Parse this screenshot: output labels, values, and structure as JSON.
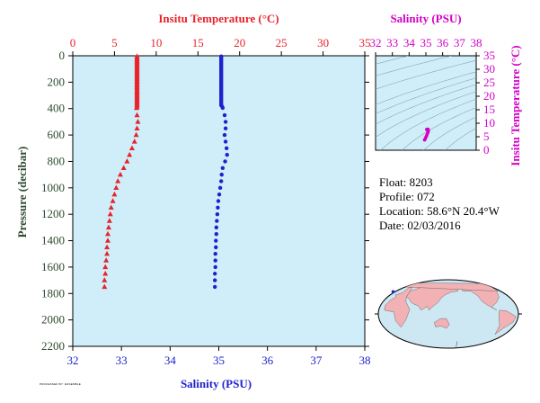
{
  "info": {
    "float_label": "Float:",
    "float_value": "8203",
    "profile_label": "Profile:",
    "profile_value": "072",
    "location_label": "Location:",
    "location_value": "58.6°N  20.4°W",
    "date_label": "Date:",
    "date_value": "02/03/2016"
  },
  "credit_text": "PROCESSED BY: ENSEMBLE",
  "colors": {
    "temperature": "#e8232b",
    "salinity": "#1e22cc",
    "salinity_axis": "#d400c8",
    "pressure_axis": "#2e4a2e",
    "panel_bg": "#cfeef9",
    "land": "#f2b1b4",
    "ocean": "#cde8f2"
  },
  "chart_data": [
    {
      "type": "line",
      "title": "",
      "x_top_label": "Insitu Temperature (°C)",
      "x_top_range": [
        0,
        35
      ],
      "x_top_ticks": [
        "0",
        "5",
        "10",
        "15",
        "20",
        "25",
        "30",
        "35"
      ],
      "x_bottom_label": "Salinity (PSU)",
      "x_bottom_range": [
        32,
        38
      ],
      "x_bottom_ticks": [
        "32",
        "33",
        "34",
        "35",
        "36",
        "37",
        "38"
      ],
      "ylabel": "Pressure (decibar)",
      "ylim": [
        0,
        2200
      ],
      "y_inverted": true,
      "y_ticks": [
        "0",
        "200",
        "400",
        "600",
        "800",
        "1000",
        "1200",
        "1400",
        "1600",
        "1800",
        "2000",
        "2200"
      ],
      "grid": false,
      "series": [
        {
          "key": "temperature",
          "axis": "top",
          "marker": "triangle",
          "pressure": [
            5,
            15,
            25,
            35,
            45,
            55,
            65,
            75,
            85,
            95,
            105,
            115,
            125,
            135,
            145,
            155,
            165,
            175,
            185,
            195,
            205,
            215,
            225,
            235,
            245,
            255,
            265,
            275,
            285,
            295,
            305,
            315,
            325,
            335,
            345,
            355,
            365,
            375,
            385,
            395,
            450,
            500,
            550,
            600,
            650,
            700,
            750,
            800,
            850,
            900,
            950,
            1000,
            1050,
            1100,
            1150,
            1200,
            1250,
            1300,
            1350,
            1400,
            1450,
            1500,
            1550,
            1600,
            1650,
            1700,
            1750
          ],
          "values": [
            7.7,
            7.7,
            7.7,
            7.7,
            7.7,
            7.7,
            7.7,
            7.7,
            7.7,
            7.7,
            7.7,
            7.7,
            7.7,
            7.7,
            7.7,
            7.7,
            7.7,
            7.7,
            7.7,
            7.7,
            7.7,
            7.7,
            7.7,
            7.7,
            7.7,
            7.7,
            7.7,
            7.7,
            7.7,
            7.7,
            7.7,
            7.7,
            7.7,
            7.7,
            7.7,
            7.7,
            7.7,
            7.7,
            7.7,
            7.65,
            7.7,
            7.8,
            7.7,
            7.6,
            7.4,
            7.1,
            6.8,
            6.5,
            6.1,
            5.7,
            5.4,
            5.2,
            5.0,
            4.8,
            4.6,
            4.5,
            4.4,
            4.3,
            4.2,
            4.2,
            4.1,
            4.1,
            4.0,
            3.9,
            3.9,
            3.8,
            3.8
          ]
        },
        {
          "key": "salinity",
          "axis": "bottom",
          "marker": "circle",
          "pressure": [
            5,
            15,
            25,
            35,
            45,
            55,
            65,
            75,
            85,
            95,
            105,
            115,
            125,
            135,
            145,
            155,
            165,
            175,
            185,
            195,
            205,
            215,
            225,
            235,
            245,
            255,
            265,
            275,
            285,
            295,
            305,
            315,
            325,
            335,
            345,
            355,
            365,
            375,
            385,
            395,
            450,
            500,
            550,
            600,
            650,
            700,
            750,
            800,
            850,
            900,
            950,
            1000,
            1050,
            1100,
            1150,
            1200,
            1250,
            1300,
            1350,
            1400,
            1450,
            1500,
            1550,
            1600,
            1650,
            1700,
            1750
          ],
          "values": [
            35.05,
            35.05,
            35.05,
            35.05,
            35.05,
            35.05,
            35.05,
            35.05,
            35.05,
            35.05,
            35.05,
            35.05,
            35.05,
            35.05,
            35.05,
            35.05,
            35.05,
            35.05,
            35.05,
            35.05,
            35.05,
            35.05,
            35.05,
            35.05,
            35.05,
            35.05,
            35.05,
            35.05,
            35.05,
            35.05,
            35.05,
            35.05,
            35.05,
            35.05,
            35.05,
            35.05,
            35.05,
            35.05,
            35.07,
            35.08,
            35.12,
            35.14,
            35.14,
            35.12,
            35.14,
            35.16,
            35.17,
            35.13,
            35.08,
            35.06,
            35.05,
            35.03,
            35.01,
            34.99,
            34.98,
            34.97,
            34.96,
            34.95,
            34.95,
            34.94,
            34.94,
            34.93,
            34.93,
            34.93,
            34.92,
            34.92,
            34.92
          ]
        }
      ]
    },
    {
      "type": "scatter",
      "title": "",
      "x_top_label": "Salinity (PSU)",
      "xlim": [
        32,
        38
      ],
      "x_ticks": [
        "32",
        "33",
        "34",
        "35",
        "36",
        "37",
        "38"
      ],
      "ylabel": "Insitu Temperature (°C)",
      "ylim": [
        0,
        35
      ],
      "y_ticks": [
        "0",
        "5",
        "10",
        "15",
        "20",
        "25",
        "30",
        "35"
      ],
      "density_contours": [
        14,
        16,
        18,
        20,
        22,
        23,
        24,
        25,
        26,
        27,
        28,
        29
      ],
      "salinity": [
        34.92,
        34.94,
        34.97,
        35.0,
        35.03,
        35.06,
        35.1,
        35.13,
        35.15,
        35.14,
        35.12,
        35.08,
        35.05,
        35.05,
        35.05
      ],
      "temperature": [
        3.8,
        4.0,
        4.4,
        4.8,
        5.2,
        5.7,
        6.3,
        6.8,
        7.2,
        7.6,
        7.8,
        7.7,
        7.7,
        7.7,
        7.7
      ]
    },
    {
      "type": "map",
      "marker": {
        "lat": 58.6,
        "lon": -20.4
      }
    }
  ]
}
